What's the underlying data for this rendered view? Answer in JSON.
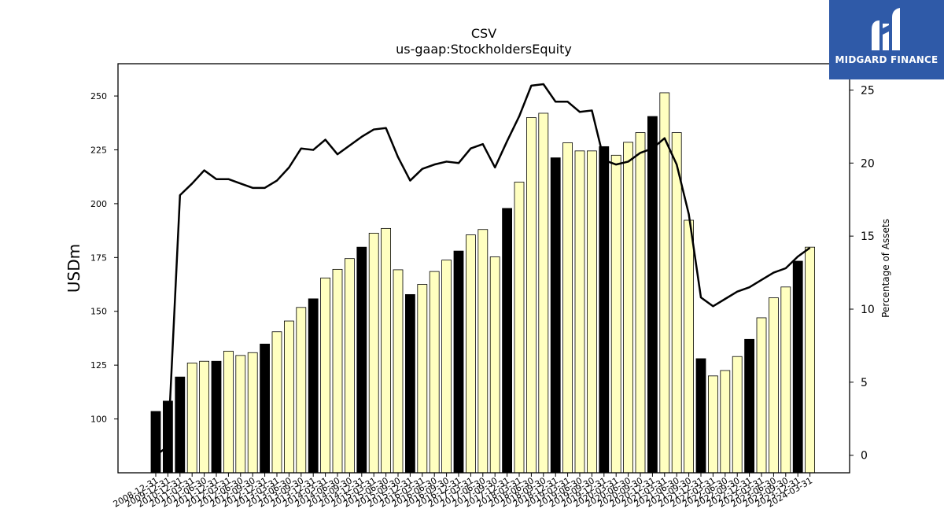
{
  "logo": {
    "text": "MIDGARD FINANCE",
    "bg_color": "#2f5aa8"
  },
  "chart_data": {
    "type": "bar",
    "title": "CSV",
    "subtitle": "us-gaap:StockholdersEquity",
    "ylabel": "USDm",
    "y2label": "Percentage of Assets",
    "ylim": [
      75,
      265
    ],
    "y2lim": [
      -1.2,
      26.8
    ],
    "yticks": [
      100,
      125,
      150,
      175,
      200,
      225,
      250
    ],
    "y2ticks": [
      0,
      5,
      10,
      15,
      20,
      25
    ],
    "grid": false,
    "bar_colors": {
      "year_end": "#000000",
      "quarter": "#ffffc0"
    },
    "line_color": "#000000",
    "categories": [
      "2008-12-31",
      "2009-12-31",
      "2010-12-31",
      "2011-03-31",
      "2011-06-30",
      "2011-12-31",
      "2012-03-31",
      "2012-06-30",
      "2012-09-30",
      "2012-12-31",
      "2013-03-31",
      "2013-06-30",
      "2013-09-30",
      "2013-12-31",
      "2014-03-31",
      "2014-06-30",
      "2014-09-30",
      "2014-12-31",
      "2015-03-31",
      "2015-06-30",
      "2015-09-30",
      "2015-12-31",
      "2016-03-31",
      "2016-06-30",
      "2016-09-30",
      "2016-12-31",
      "2017-03-31",
      "2017-06-30",
      "2017-09-30",
      "2017-12-31",
      "2018-03-31",
      "2018-06-30",
      "2018-09-30",
      "2018-12-31",
      "2019-03-31",
      "2019-06-30",
      "2019-09-30",
      "2019-12-31",
      "2020-03-31",
      "2020-06-30",
      "2020-09-30",
      "2020-12-31",
      "2021-03-31",
      "2021-06-30",
      "2021-09-30",
      "2021-12-31",
      "2022-03-31",
      "2022-06-30",
      "2022-09-30",
      "2022-12-31",
      "2023-03-31",
      "2023-06-30",
      "2023-09-30",
      "2023-12-31",
      "2024-03-31"
    ],
    "series": [
      {
        "kind": "bar",
        "axis": "left",
        "values": [
          103.5,
          108.3,
          119.5,
          126,
          126.8,
          126.8,
          131.5,
          129.5,
          130.8,
          134.8,
          140.5,
          145.5,
          151.8,
          155.8,
          165.5,
          169.5,
          174.5,
          179.8,
          186.3,
          188.5,
          169.3,
          157.8,
          162.5,
          168.5,
          173.8,
          178,
          185.5,
          188,
          175.3,
          197.8,
          210,
          240,
          242,
          221.3,
          228.3,
          224.5,
          224.5,
          226.5,
          222.5,
          228.5,
          233,
          240.5,
          251.5,
          233,
          192.3,
          128,
          120,
          122.5,
          129,
          137,
          147,
          156.3,
          161.3,
          173.3,
          179.8
        ],
        "year_end": [
          true,
          true,
          true,
          false,
          false,
          true,
          false,
          false,
          false,
          true,
          false,
          false,
          false,
          true,
          false,
          false,
          false,
          true,
          false,
          false,
          false,
          true,
          false,
          false,
          false,
          true,
          false,
          false,
          false,
          true,
          false,
          false,
          false,
          true,
          false,
          false,
          false,
          true,
          false,
          false,
          false,
          true,
          false,
          false,
          false,
          true,
          false,
          false,
          false,
          true,
          false,
          false,
          false,
          true,
          false
        ]
      },
      {
        "kind": "line",
        "axis": "right",
        "values": [
          0,
          0.6,
          17.8,
          18.6,
          19.5,
          18.9,
          18.9,
          18.6,
          18.3,
          18.3,
          18.8,
          19.7,
          21.0,
          20.9,
          21.6,
          20.6,
          21.2,
          21.8,
          22.3,
          22.4,
          20.4,
          18.8,
          19.6,
          19.9,
          20.1,
          20.0,
          21.0,
          21.3,
          19.7,
          21.5,
          23.2,
          25.3,
          25.4,
          24.2,
          24.2,
          23.5,
          23.6,
          20.2,
          19.9,
          20.1,
          20.7,
          21.0,
          21.7,
          19.9,
          16.5,
          10.8,
          10.2,
          10.7,
          11.2,
          11.5,
          12.0,
          12.5,
          12.8,
          13.6,
          14.2
        ]
      }
    ]
  }
}
